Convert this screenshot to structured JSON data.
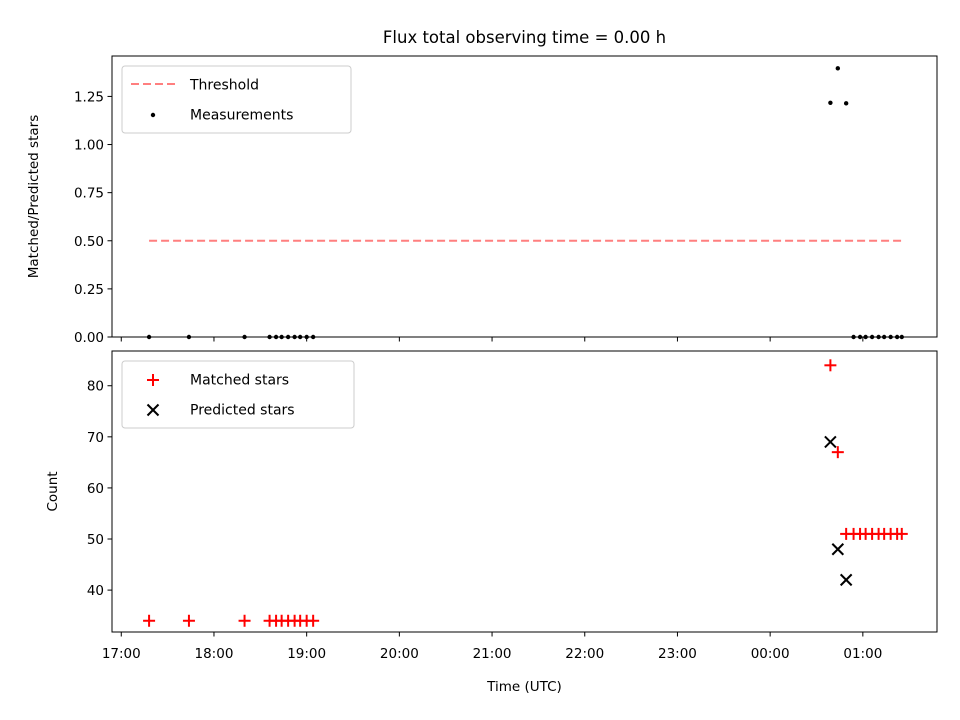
{
  "title": "Flux total observing time = 0.00 h",
  "xlabel": "Time (UTC)",
  "x_tick_labels": [
    "17:00",
    "18:00",
    "19:00",
    "20:00",
    "21:00",
    "22:00",
    "23:00",
    "00:00",
    "01:00"
  ],
  "colors": {
    "threshold": "#ff7f7f",
    "measurements": "#000000",
    "matched": "#ff0000",
    "predicted": "#000000"
  },
  "chart_data": [
    {
      "type": "scatter",
      "panel": "top",
      "ylabel": "Matched/Predicted stars",
      "x_unit": "hours since 17:00 UTC",
      "xlim": [
        16.9,
        25.8
      ],
      "ylim": [
        0,
        1.46
      ],
      "y_ticks": [
        "0.00",
        "0.25",
        "0.50",
        "0.75",
        "1.00",
        "1.25"
      ],
      "legend": {
        "position": "top-left",
        "entries": [
          "Threshold",
          "Measurements"
        ]
      },
      "series": [
        {
          "name": "Threshold",
          "kind": "dashed-line",
          "x": [
            17.3,
            25.42
          ],
          "y": [
            0.5,
            0.5
          ]
        },
        {
          "name": "Measurements",
          "kind": "dot",
          "x": [
            17.3,
            17.73,
            18.33,
            18.6,
            18.67,
            18.73,
            18.8,
            18.87,
            18.93,
            19.0,
            19.07,
            24.65,
            24.73,
            24.82,
            24.9,
            24.97,
            25.03,
            25.1,
            25.17,
            25.23,
            25.3,
            25.37,
            25.42
          ],
          "y": [
            0,
            0,
            0,
            0,
            0,
            0,
            0,
            0,
            0,
            0,
            0,
            1.217,
            1.396,
            1.214,
            0,
            0,
            0,
            0,
            0,
            0,
            0,
            0,
            0
          ]
        }
      ]
    },
    {
      "type": "scatter",
      "panel": "bottom",
      "ylabel": "Count",
      "x_unit": "hours since 17:00 UTC",
      "xlim": [
        16.9,
        25.8
      ],
      "ylim": [
        31.8,
        86.8
      ],
      "y_ticks": [
        "40",
        "50",
        "60",
        "70",
        "80"
      ],
      "legend": {
        "position": "top-left",
        "entries": [
          "Matched stars",
          "Predicted stars"
        ]
      },
      "series": [
        {
          "name": "Matched stars",
          "kind": "plus",
          "x": [
            17.3,
            17.73,
            18.33,
            18.6,
            18.67,
            18.73,
            18.8,
            18.87,
            18.93,
            19.0,
            19.07,
            24.65,
            24.73,
            24.82,
            24.9,
            24.97,
            25.03,
            25.1,
            25.17,
            25.23,
            25.3,
            25.37,
            25.42
          ],
          "y": [
            34,
            34,
            34,
            34,
            34,
            34,
            34,
            34,
            34,
            34,
            34,
            84,
            67,
            51,
            51,
            51,
            51,
            51,
            51,
            51,
            51,
            51,
            51
          ]
        },
        {
          "name": "Predicted stars",
          "kind": "x",
          "x": [
            24.65,
            24.73,
            24.82
          ],
          "y": [
            69,
            48,
            42
          ]
        }
      ]
    }
  ]
}
